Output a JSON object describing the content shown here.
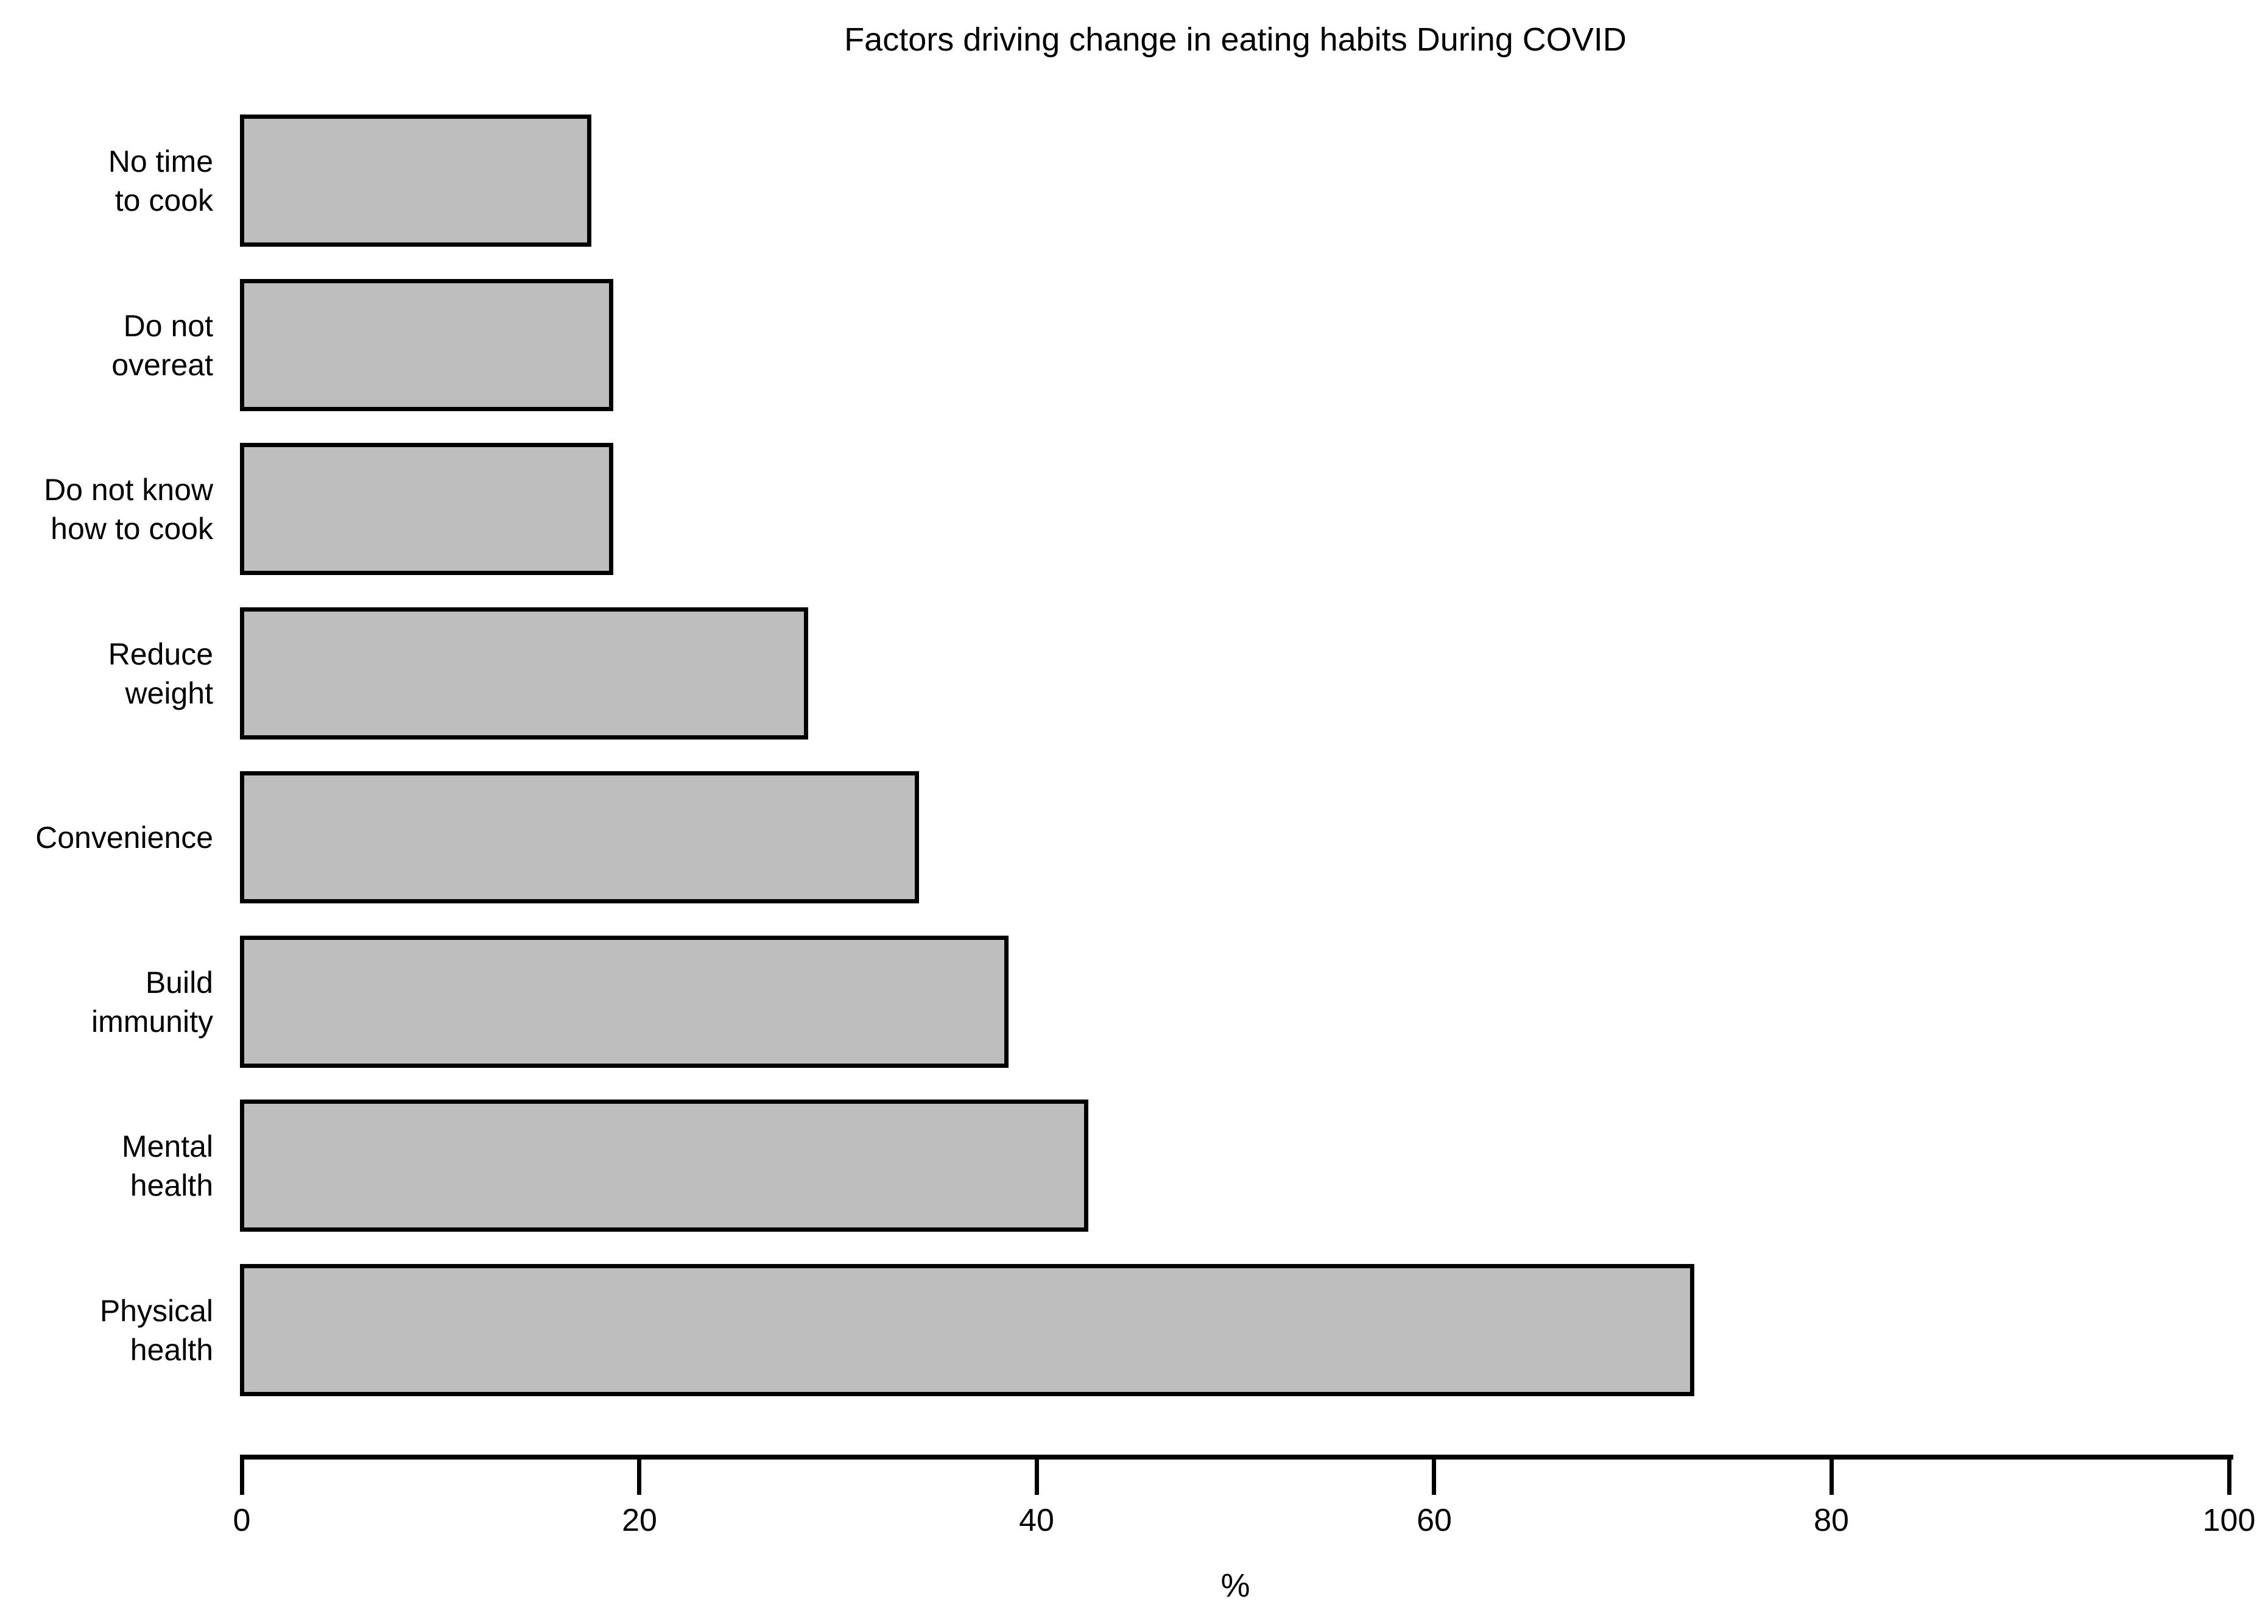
{
  "chart_data": {
    "type": "bar",
    "orientation": "horizontal",
    "title": "Factors driving change in eating habits During COVID",
    "xlabel": "%",
    "ylabel": "",
    "xlim": [
      0,
      100
    ],
    "xticks": [
      0,
      20,
      40,
      60,
      80,
      100
    ],
    "grid": false,
    "legend": "none",
    "bar_fill": "#bebebe",
    "bar_border": "#000000",
    "order": "top-to-bottom",
    "categories": [
      "No time to cook",
      "Do not overeat",
      "Do not know how to cook",
      "Reduce weight",
      "Convenience",
      "Build immunity",
      "Mental health",
      "Physical health"
    ],
    "label_lines": [
      [
        "No time",
        "to cook"
      ],
      [
        "Do not",
        "overeat"
      ],
      [
        "Do not know",
        "how to cook"
      ],
      [
        "Reduce",
        "weight"
      ],
      [
        "Convenience"
      ],
      [
        "Build",
        "immunity"
      ],
      [
        "Mental",
        "health"
      ],
      [
        "Physical",
        "health"
      ]
    ],
    "values": [
      17.5,
      18.6,
      18.6,
      28.4,
      34,
      38.5,
      42.5,
      73
    ]
  }
}
